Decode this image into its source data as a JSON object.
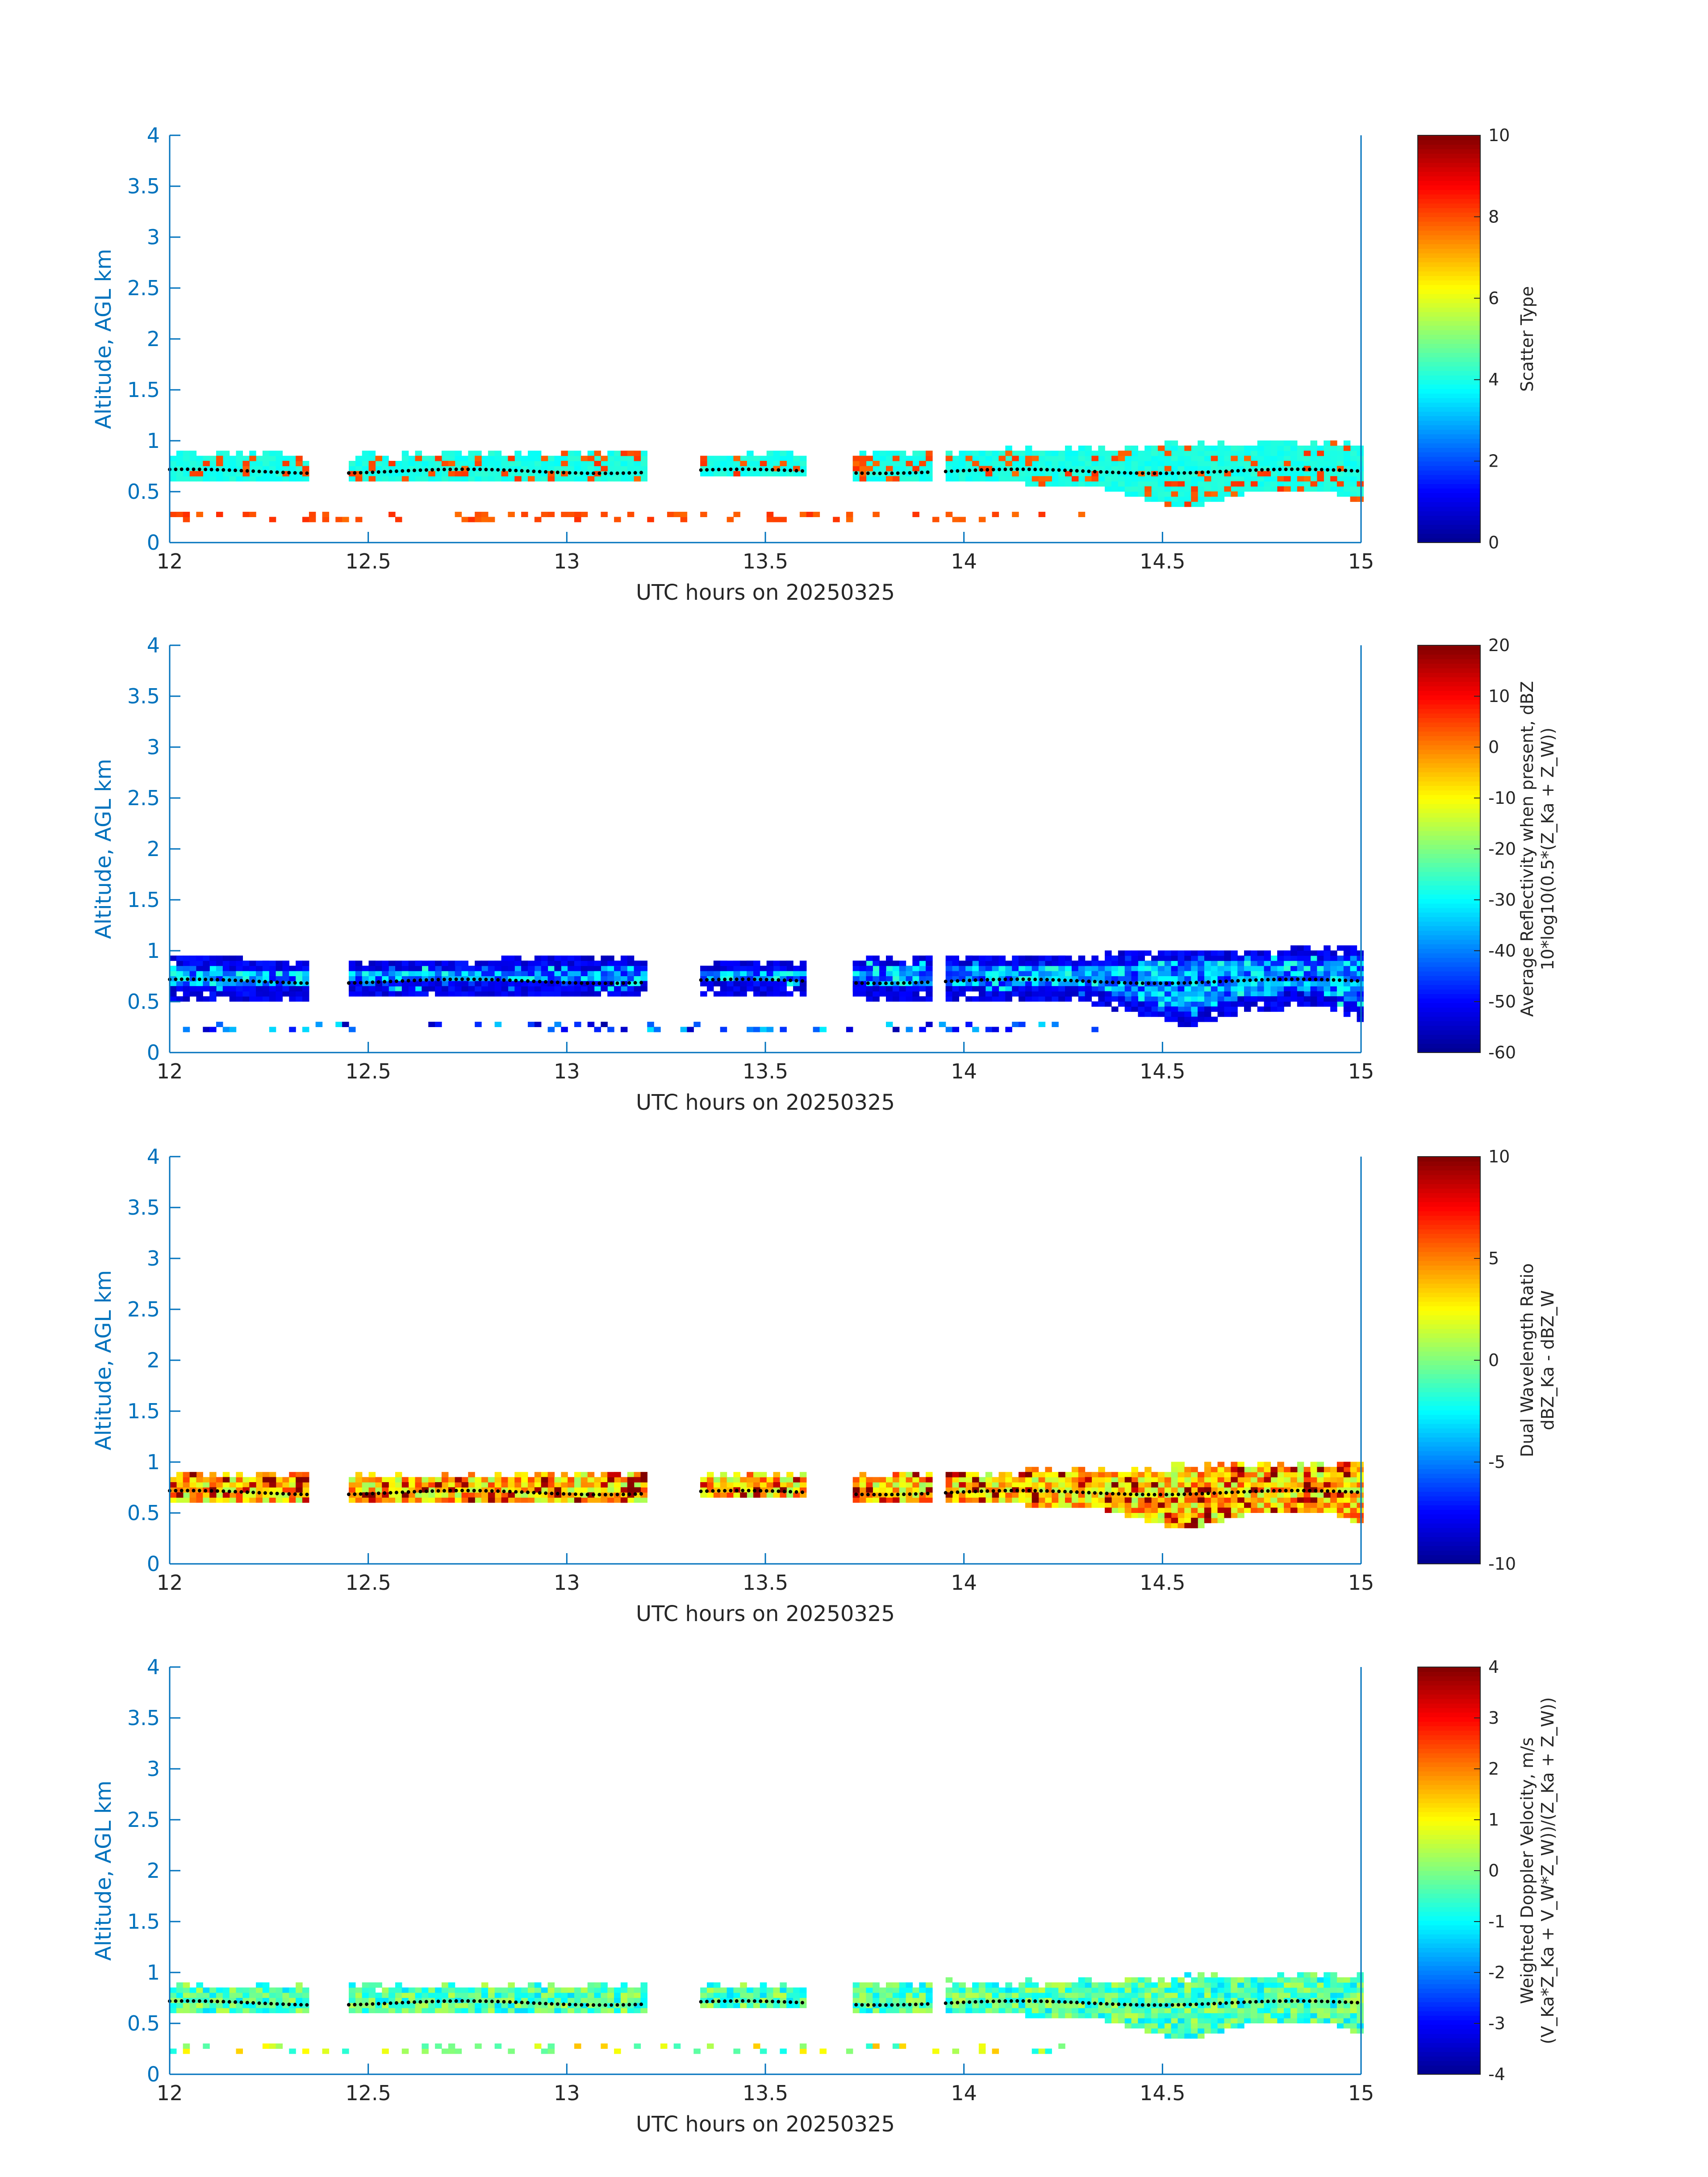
{
  "colors": {
    "axis": "#0072bd",
    "text": "#262626",
    "jet_stops": [
      "#00008f",
      "#0000ff",
      "#0080ff",
      "#00ffff",
      "#80ff80",
      "#ffff00",
      "#ff8000",
      "#ff0000",
      "#800000"
    ]
  },
  "chart_data": [
    {
      "id": "scatter-type",
      "type": "heatmap",
      "xlabel": "UTC hours on 20250325",
      "ylabel": "Altitude, AGL km",
      "xlim": [
        12,
        15
      ],
      "ylim": [
        0,
        4
      ],
      "xticks": [
        "12",
        "12.5",
        "13",
        "13.5",
        "14",
        "14.5",
        "15"
      ],
      "yticks": [
        "0",
        "0.5",
        "1",
        "1.5",
        "2",
        "2.5",
        "3",
        "3.5",
        "4"
      ],
      "colorbar": {
        "label_lines": [
          "Scatter Type"
        ],
        "clim": [
          0,
          10
        ],
        "ticks": [
          "0",
          "2",
          "4",
          "6",
          "8",
          "10"
        ]
      },
      "layers": [
        {
          "kind": "band",
          "value": 4.0,
          "jitter": 0.2,
          "rows": 1,
          "seed": 11
        },
        {
          "kind": "spot",
          "value": 8.0,
          "jitter": 0.3,
          "rows": 0.5,
          "seed": 21
        },
        {
          "kind": "low",
          "value": 8.0,
          "jitter": 0.3,
          "rows": 1,
          "seed": 31
        }
      ]
    },
    {
      "id": "reflectivity",
      "type": "heatmap",
      "xlabel": "UTC hours on 20250325",
      "ylabel": "Altitude, AGL km",
      "xlim": [
        12,
        15
      ],
      "ylim": [
        0,
        4
      ],
      "xticks": [
        "12",
        "12.5",
        "13",
        "13.5",
        "14",
        "14.5",
        "15"
      ],
      "yticks": [
        "0",
        "0.5",
        "1",
        "1.5",
        "2",
        "2.5",
        "3",
        "3.5",
        "4"
      ],
      "colorbar": {
        "label_lines": [
          "Average Reflectivity when present, dBZ",
          "10*log10(0.5*(Z_Ka + Z_W))"
        ],
        "clim": [
          -60,
          20
        ],
        "ticks": [
          "-60",
          "-50",
          "-40",
          "-30",
          "-20",
          "-10",
          "0",
          "10",
          "20"
        ]
      },
      "layers": [
        {
          "kind": "band",
          "value": -38,
          "jitter": 12,
          "rows": 1,
          "seed": 12
        },
        {
          "kind": "edge",
          "value": -52,
          "jitter": 4,
          "rows": 1,
          "seed": 22
        },
        {
          "kind": "low",
          "value": -45,
          "jitter": 14,
          "rows": 1,
          "seed": 32
        }
      ]
    },
    {
      "id": "dual-wavelength-ratio",
      "type": "heatmap",
      "xlabel": "UTC hours on 20250325",
      "ylabel": "Altitude, AGL km",
      "xlim": [
        12,
        15
      ],
      "ylim": [
        0,
        4
      ],
      "xticks": [
        "12",
        "12.5",
        "13",
        "13.5",
        "14",
        "14.5",
        "15"
      ],
      "yticks": [
        "0",
        "0.5",
        "1",
        "1.5",
        "2",
        "2.5",
        "3",
        "3.5",
        "4"
      ],
      "colorbar": {
        "label_lines": [
          "Dual Wavelength Ratio",
          "dBZ_Ka - dBZ_W"
        ],
        "clim": [
          -10,
          10
        ],
        "ticks": [
          "-10",
          "-5",
          "0",
          "5",
          "10"
        ]
      },
      "layers": [
        {
          "kind": "band",
          "value": 3.5,
          "jitter": 3.0,
          "rows": 1,
          "seed": 13
        },
        {
          "kind": "spot",
          "value": 9.5,
          "jitter": 1.0,
          "rows": 0.35,
          "seed": 23
        }
      ]
    },
    {
      "id": "doppler-velocity",
      "type": "heatmap",
      "xlabel": "UTC hours on 20250325",
      "ylabel": "Altitude, AGL km",
      "xlim": [
        12,
        15
      ],
      "ylim": [
        0,
        4
      ],
      "xticks": [
        "12",
        "12.5",
        "13",
        "13.5",
        "14",
        "14.5",
        "15"
      ],
      "yticks": [
        "0",
        "0.5",
        "1",
        "1.5",
        "2",
        "2.5",
        "3",
        "3.5",
        "4"
      ],
      "colorbar": {
        "label_lines": [
          "Weighted Doppler Velocity, m/s",
          "(V_Ka*Z_Ka + V_W*Z_W))/(Z_Ka + Z_W))"
        ],
        "clim": [
          -4,
          4
        ],
        "ticks": [
          "-4",
          "-3",
          "-2",
          "-1",
          "0",
          "1",
          "2",
          "3",
          "4"
        ]
      },
      "layers": [
        {
          "kind": "band",
          "value": -0.4,
          "jitter": 0.9,
          "rows": 1,
          "seed": 14
        },
        {
          "kind": "low",
          "value": 0.3,
          "jitter": 1.2,
          "rows": 1,
          "seed": 34
        }
      ]
    }
  ],
  "structure": {
    "time_step_h": 0.0167,
    "alt_step_km": 0.05,
    "segments": [
      [
        12.0,
        12.35
      ],
      [
        12.45,
        13.2
      ],
      [
        13.33,
        13.6
      ],
      [
        13.72,
        13.92
      ],
      [
        13.94,
        15.0
      ]
    ],
    "top_km": [
      [
        12.0,
        0.86
      ],
      [
        12.35,
        0.83
      ],
      [
        12.45,
        0.83
      ],
      [
        13.2,
        0.86
      ],
      [
        13.33,
        0.84
      ],
      [
        13.6,
        0.84
      ],
      [
        13.72,
        0.84
      ],
      [
        13.92,
        0.87
      ],
      [
        14.0,
        0.87
      ],
      [
        14.2,
        0.88
      ],
      [
        14.4,
        0.9
      ],
      [
        14.6,
        0.93
      ],
      [
        15.0,
        0.96
      ]
    ],
    "bottom_km": [
      [
        12.0,
        0.56
      ],
      [
        12.35,
        0.56
      ],
      [
        12.45,
        0.58
      ],
      [
        13.2,
        0.6
      ],
      [
        13.33,
        0.62
      ],
      [
        13.6,
        0.62
      ],
      [
        13.72,
        0.58
      ],
      [
        13.92,
        0.55
      ],
      [
        14.0,
        0.56
      ],
      [
        14.3,
        0.54
      ],
      [
        14.45,
        0.4
      ],
      [
        14.55,
        0.3
      ],
      [
        14.7,
        0.45
      ],
      [
        14.9,
        0.5
      ],
      [
        15.0,
        0.35
      ]
    ],
    "low_altitude_km": 0.22,
    "low_density": 0.22,
    "cloud_base_dots_km": 0.7
  }
}
